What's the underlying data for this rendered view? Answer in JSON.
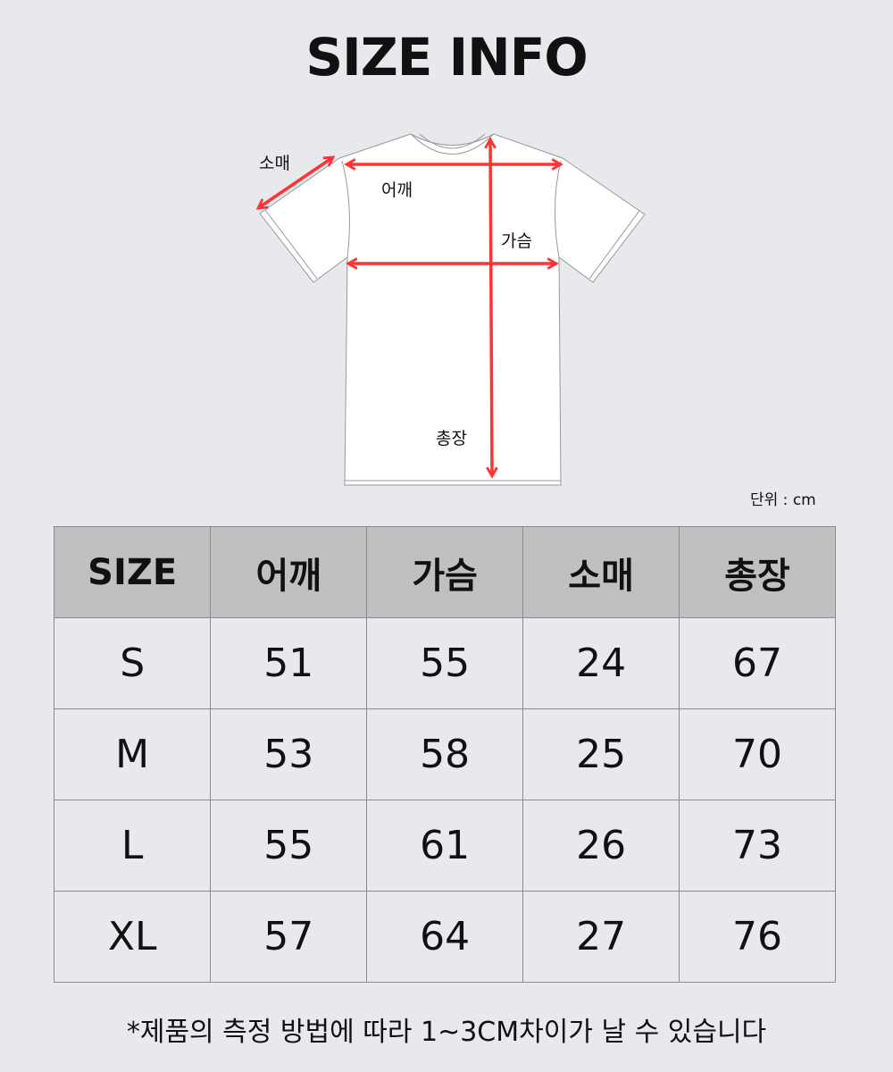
{
  "title": "SIZE INFO",
  "diagram": {
    "labels": {
      "sleeve": "소매",
      "shoulder": "어깨",
      "chest": "가슴",
      "length": "총장"
    },
    "arrow_color": "#ff3333"
  },
  "unit": "단위 : cm",
  "table": {
    "headers": [
      "SIZE",
      "어깨",
      "가슴",
      "소매",
      "총장"
    ],
    "rows": [
      [
        "S",
        "51",
        "55",
        "24",
        "67"
      ],
      [
        "M",
        "53",
        "58",
        "25",
        "70"
      ],
      [
        "L",
        "55",
        "61",
        "26",
        "73"
      ],
      [
        "XL",
        "57",
        "64",
        "27",
        "76"
      ]
    ]
  },
  "note": "*제품의 측정 방법에 따라 1~3CM차이가 날 수 있습니다"
}
